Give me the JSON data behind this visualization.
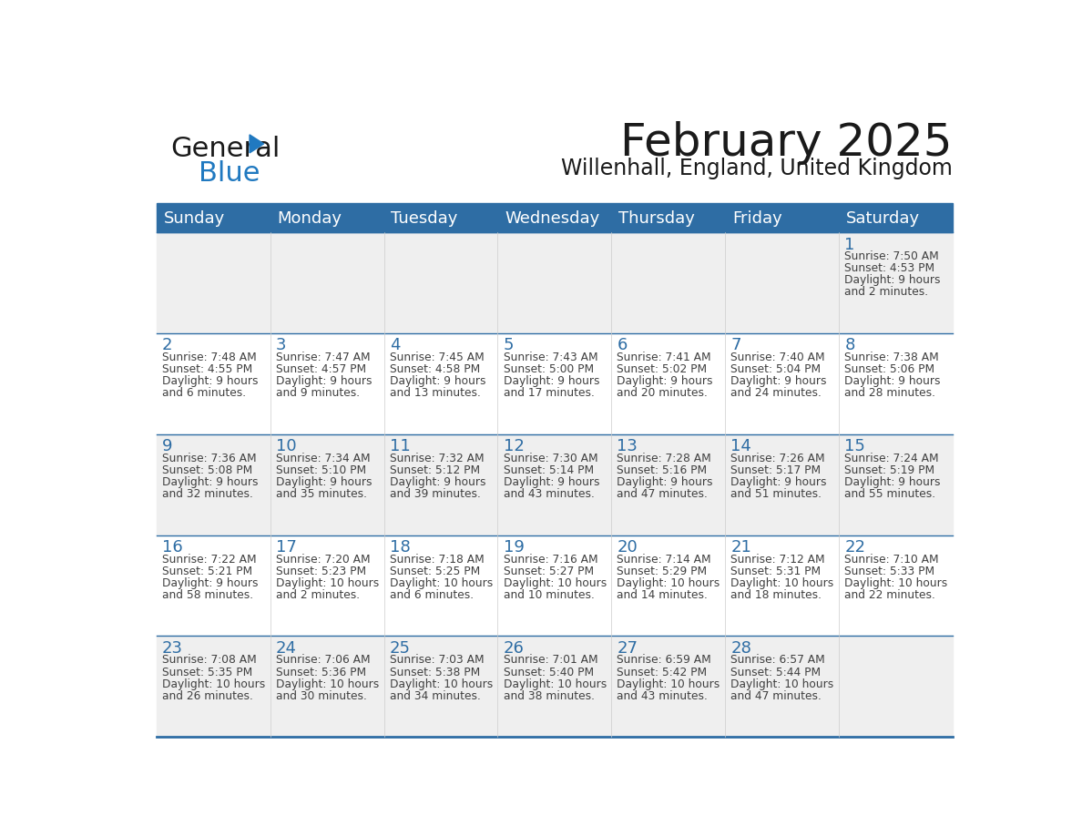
{
  "title": "February 2025",
  "subtitle": "Willenhall, England, United Kingdom",
  "header_bg": "#2E6DA4",
  "header_text": "#FFFFFF",
  "cell_bg_even": "#EFEFEF",
  "cell_bg_odd": "#FFFFFF",
  "day_number_color": "#2E6DA4",
  "text_color": "#404040",
  "line_color": "#2E6DA4",
  "days_of_week": [
    "Sunday",
    "Monday",
    "Tuesday",
    "Wednesday",
    "Thursday",
    "Friday",
    "Saturday"
  ],
  "calendar_data": [
    [
      null,
      null,
      null,
      null,
      null,
      null,
      {
        "day": "1",
        "sunrise": "7:50 AM",
        "sunset": "4:53 PM",
        "daylight1": "9 hours",
        "daylight2": "and 2 minutes."
      }
    ],
    [
      {
        "day": "2",
        "sunrise": "7:48 AM",
        "sunset": "4:55 PM",
        "daylight1": "9 hours",
        "daylight2": "and 6 minutes."
      },
      {
        "day": "3",
        "sunrise": "7:47 AM",
        "sunset": "4:57 PM",
        "daylight1": "9 hours",
        "daylight2": "and 9 minutes."
      },
      {
        "day": "4",
        "sunrise": "7:45 AM",
        "sunset": "4:58 PM",
        "daylight1": "9 hours",
        "daylight2": "and 13 minutes."
      },
      {
        "day": "5",
        "sunrise": "7:43 AM",
        "sunset": "5:00 PM",
        "daylight1": "9 hours",
        "daylight2": "and 17 minutes."
      },
      {
        "day": "6",
        "sunrise": "7:41 AM",
        "sunset": "5:02 PM",
        "daylight1": "9 hours",
        "daylight2": "and 20 minutes."
      },
      {
        "day": "7",
        "sunrise": "7:40 AM",
        "sunset": "5:04 PM",
        "daylight1": "9 hours",
        "daylight2": "and 24 minutes."
      },
      {
        "day": "8",
        "sunrise": "7:38 AM",
        "sunset": "5:06 PM",
        "daylight1": "9 hours",
        "daylight2": "and 28 minutes."
      }
    ],
    [
      {
        "day": "9",
        "sunrise": "7:36 AM",
        "sunset": "5:08 PM",
        "daylight1": "9 hours",
        "daylight2": "and 32 minutes."
      },
      {
        "day": "10",
        "sunrise": "7:34 AM",
        "sunset": "5:10 PM",
        "daylight1": "9 hours",
        "daylight2": "and 35 minutes."
      },
      {
        "day": "11",
        "sunrise": "7:32 AM",
        "sunset": "5:12 PM",
        "daylight1": "9 hours",
        "daylight2": "and 39 minutes."
      },
      {
        "day": "12",
        "sunrise": "7:30 AM",
        "sunset": "5:14 PM",
        "daylight1": "9 hours",
        "daylight2": "and 43 minutes."
      },
      {
        "day": "13",
        "sunrise": "7:28 AM",
        "sunset": "5:16 PM",
        "daylight1": "9 hours",
        "daylight2": "and 47 minutes."
      },
      {
        "day": "14",
        "sunrise": "7:26 AM",
        "sunset": "5:17 PM",
        "daylight1": "9 hours",
        "daylight2": "and 51 minutes."
      },
      {
        "day": "15",
        "sunrise": "7:24 AM",
        "sunset": "5:19 PM",
        "daylight1": "9 hours",
        "daylight2": "and 55 minutes."
      }
    ],
    [
      {
        "day": "16",
        "sunrise": "7:22 AM",
        "sunset": "5:21 PM",
        "daylight1": "9 hours",
        "daylight2": "and 58 minutes."
      },
      {
        "day": "17",
        "sunrise": "7:20 AM",
        "sunset": "5:23 PM",
        "daylight1": "10 hours",
        "daylight2": "and 2 minutes."
      },
      {
        "day": "18",
        "sunrise": "7:18 AM",
        "sunset": "5:25 PM",
        "daylight1": "10 hours",
        "daylight2": "and 6 minutes."
      },
      {
        "day": "19",
        "sunrise": "7:16 AM",
        "sunset": "5:27 PM",
        "daylight1": "10 hours",
        "daylight2": "and 10 minutes."
      },
      {
        "day": "20",
        "sunrise": "7:14 AM",
        "sunset": "5:29 PM",
        "daylight1": "10 hours",
        "daylight2": "and 14 minutes."
      },
      {
        "day": "21",
        "sunrise": "7:12 AM",
        "sunset": "5:31 PM",
        "daylight1": "10 hours",
        "daylight2": "and 18 minutes."
      },
      {
        "day": "22",
        "sunrise": "7:10 AM",
        "sunset": "5:33 PM",
        "daylight1": "10 hours",
        "daylight2": "and 22 minutes."
      }
    ],
    [
      {
        "day": "23",
        "sunrise": "7:08 AM",
        "sunset": "5:35 PM",
        "daylight1": "10 hours",
        "daylight2": "and 26 minutes."
      },
      {
        "day": "24",
        "sunrise": "7:06 AM",
        "sunset": "5:36 PM",
        "daylight1": "10 hours",
        "daylight2": "and 30 minutes."
      },
      {
        "day": "25",
        "sunrise": "7:03 AM",
        "sunset": "5:38 PM",
        "daylight1": "10 hours",
        "daylight2": "and 34 minutes."
      },
      {
        "day": "26",
        "sunrise": "7:01 AM",
        "sunset": "5:40 PM",
        "daylight1": "10 hours",
        "daylight2": "and 38 minutes."
      },
      {
        "day": "27",
        "sunrise": "6:59 AM",
        "sunset": "5:42 PM",
        "daylight1": "10 hours",
        "daylight2": "and 43 minutes."
      },
      {
        "day": "28",
        "sunrise": "6:57 AM",
        "sunset": "5:44 PM",
        "daylight1": "10 hours",
        "daylight2": "and 47 minutes."
      },
      null
    ]
  ],
  "logo_text1": "General",
  "logo_text2": "Blue",
  "logo_color1": "#1a1a1a",
  "logo_color2": "#2079C0",
  "logo_triangle_color": "#2079C0"
}
